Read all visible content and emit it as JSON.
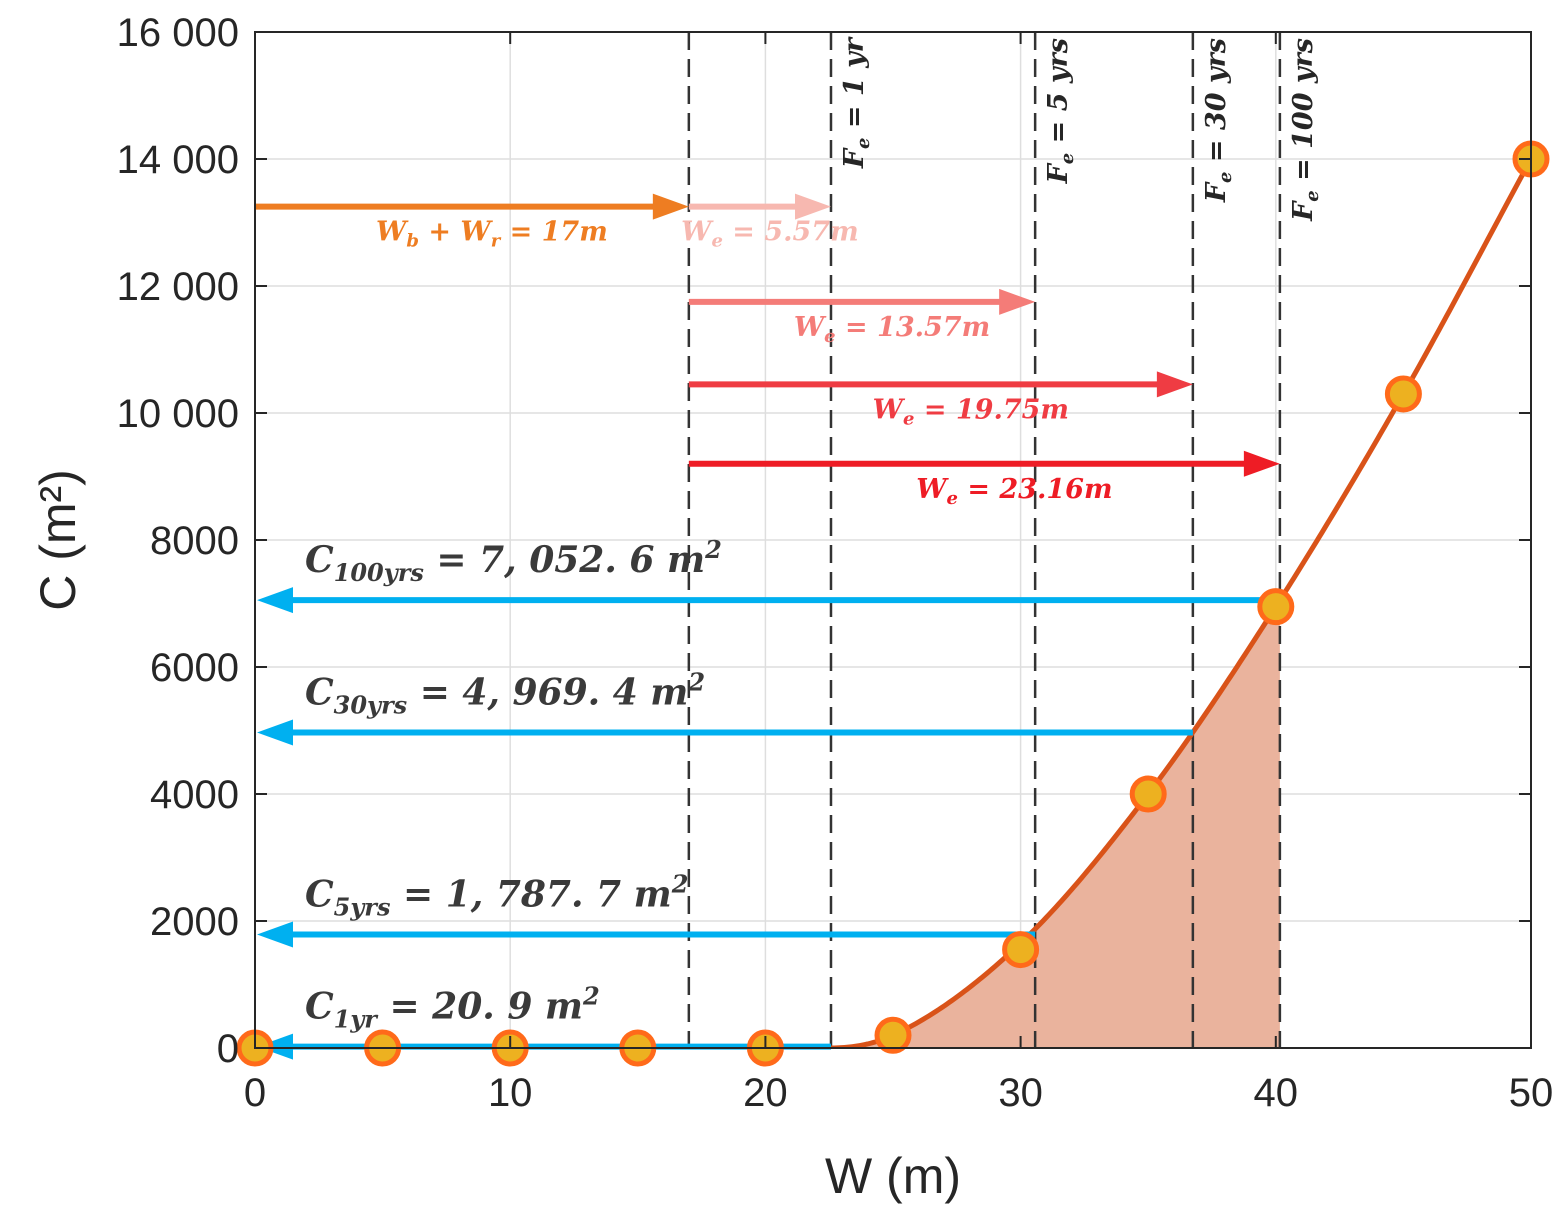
{
  "chart_data": {
    "type": "line",
    "xlabel": "W (m)",
    "ylabel": "C (m²)",
    "xlim": [
      0,
      50
    ],
    "ylim": [
      0,
      16000
    ],
    "grid": true,
    "x_ticks": [
      0,
      10,
      20,
      30,
      40,
      50
    ],
    "y_ticks": [
      0,
      2000,
      4000,
      6000,
      8000,
      10000,
      12000,
      14000,
      16000
    ],
    "x_tick_labels": [
      "0",
      "10",
      "20",
      "30",
      "40",
      "50"
    ],
    "y_tick_labels": [
      "0",
      "2000",
      "4000",
      "6000",
      "8000",
      "10 000",
      "12 000",
      "14 000",
      "16 000"
    ],
    "series": [
      {
        "type": "line",
        "color": "#d95319",
        "x": [
          0,
          5,
          10,
          15,
          20,
          22.5,
          25,
          30,
          35,
          40,
          45,
          50
        ],
        "y": [
          0,
          0,
          0,
          0,
          0,
          0,
          200,
          1650,
          4000,
          6950,
          10300,
          14000
        ]
      },
      {
        "type": "scatter",
        "marker_color": "#edb120",
        "edge_color": "#ff6a1a",
        "x": [
          0,
          5,
          10,
          15,
          20,
          25,
          30,
          35,
          40,
          45,
          50
        ],
        "y": [
          0,
          0,
          0,
          0,
          0,
          200,
          1550,
          4000,
          6950,
          10300,
          14000
        ]
      }
    ],
    "shaded_area": {
      "x_from": 22.5,
      "x_to": 40.16,
      "color": "#eab39d"
    },
    "vlines": [
      {
        "x": 17.0,
        "label": ""
      },
      {
        "x": 22.57,
        "label": "= 1 yr"
      },
      {
        "x": 30.57,
        "label": "= 5 yrs"
      },
      {
        "x": 36.75,
        "label": "= 30 yrs"
      },
      {
        "x": 40.16,
        "label": "= 100 yrs"
      }
    ],
    "vline_label_prefix": {
      "base": "F",
      "sub": "e"
    },
    "right_arrows": [
      {
        "x0": 0,
        "x1": 17.0,
        "y": 13250,
        "color": "#ee7d22",
        "label": "= 17m",
        "label_parts": {
          "a": "W",
          "a_sub": "b",
          "op": " + ",
          "b": "W",
          "b_sub": "r"
        }
      },
      {
        "x0": 17.0,
        "x1": 22.57,
        "y": 13250,
        "color": "#f7b8b0",
        "label": "= 5.57m",
        "label_parts": {
          "a": "W",
          "a_sub": "e"
        }
      },
      {
        "x0": 17.0,
        "x1": 30.57,
        "y": 11750,
        "color": "#f47c78",
        "label": "= 13.57m",
        "label_parts": {
          "a": "W",
          "a_sub": "e"
        }
      },
      {
        "x0": 17.0,
        "x1": 36.75,
        "y": 10450,
        "color": "#ef3c43",
        "label": "= 19.75m",
        "label_parts": {
          "a": "W",
          "a_sub": "e"
        }
      },
      {
        "x0": 17.0,
        "x1": 40.16,
        "y": 9200,
        "color": "#ee1c25",
        "label": "= 23.16m",
        "label_parts": {
          "a": "W",
          "a_sub": "e"
        }
      }
    ],
    "left_arrows": [
      {
        "from_x": 40.16,
        "y": 7052.6,
        "color": "#00b0f0",
        "sub": "100yrs",
        "label": "= 7, 052. 6 m"
      },
      {
        "from_x": 36.75,
        "y": 4969.4,
        "color": "#00b0f0",
        "sub": "30yrs",
        "label": "= 4, 969. 4 m"
      },
      {
        "from_x": 30.57,
        "y": 1787.7,
        "color": "#00b0f0",
        "sub": "5yrs",
        "label": "= 1, 787. 7 m"
      },
      {
        "from_x": 22.57,
        "y": 20.9,
        "color": "#00b0f0",
        "sub": "1yr",
        "label": "= 20. 9 m"
      }
    ],
    "left_arrow_label_prefix": "C",
    "left_arrow_label_sup": "2"
  }
}
